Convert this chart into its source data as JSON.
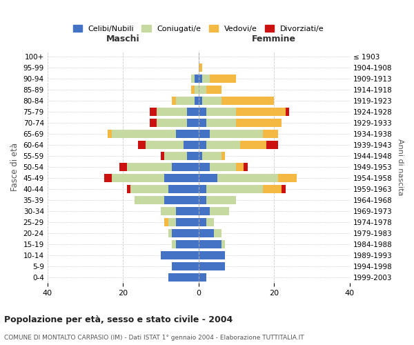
{
  "age_groups": [
    "0-4",
    "5-9",
    "10-14",
    "15-19",
    "20-24",
    "25-29",
    "30-34",
    "35-39",
    "40-44",
    "45-49",
    "50-54",
    "55-59",
    "60-64",
    "65-69",
    "70-74",
    "75-79",
    "80-84",
    "85-89",
    "90-94",
    "95-99",
    "100+"
  ],
  "birth_years": [
    "1999-2003",
    "1994-1998",
    "1989-1993",
    "1984-1988",
    "1979-1983",
    "1974-1978",
    "1969-1973",
    "1964-1968",
    "1959-1963",
    "1954-1958",
    "1949-1953",
    "1944-1948",
    "1939-1943",
    "1934-1938",
    "1929-1933",
    "1924-1928",
    "1919-1923",
    "1914-1918",
    "1909-1913",
    "1904-1908",
    "≤ 1903"
  ],
  "maschi": {
    "celibi": [
      8,
      7,
      10,
      6,
      7,
      6,
      6,
      9,
      8,
      9,
      7,
      3,
      4,
      6,
      3,
      3,
      1,
      0,
      1,
      0,
      0
    ],
    "coniugati": [
      0,
      0,
      0,
      1,
      1,
      2,
      4,
      8,
      10,
      14,
      12,
      6,
      10,
      17,
      8,
      8,
      5,
      1,
      1,
      0,
      0
    ],
    "vedovi": [
      0,
      0,
      0,
      0,
      0,
      1,
      0,
      0,
      0,
      0,
      0,
      0,
      0,
      1,
      0,
      0,
      1,
      1,
      0,
      0,
      0
    ],
    "divorziati": [
      0,
      0,
      0,
      0,
      0,
      0,
      0,
      0,
      1,
      2,
      2,
      1,
      2,
      0,
      2,
      2,
      0,
      0,
      0,
      0,
      0
    ]
  },
  "femmine": {
    "nubili": [
      2,
      7,
      7,
      6,
      4,
      2,
      3,
      2,
      2,
      5,
      3,
      1,
      2,
      3,
      2,
      2,
      1,
      0,
      1,
      0,
      0
    ],
    "coniugate": [
      0,
      0,
      0,
      1,
      2,
      2,
      5,
      8,
      15,
      16,
      7,
      5,
      9,
      14,
      8,
      8,
      5,
      2,
      2,
      0,
      0
    ],
    "vedove": [
      0,
      0,
      0,
      0,
      0,
      0,
      0,
      0,
      5,
      5,
      2,
      1,
      7,
      4,
      12,
      13,
      14,
      4,
      7,
      1,
      0
    ],
    "divorziate": [
      0,
      0,
      0,
      0,
      0,
      0,
      0,
      0,
      1,
      0,
      1,
      0,
      3,
      0,
      0,
      1,
      0,
      0,
      0,
      0,
      0
    ]
  },
  "colors": {
    "celibi_nubili": "#4472c4",
    "coniugati": "#c5d9a0",
    "vedovi": "#f4b942",
    "divorziati": "#cc1111"
  },
  "title": "Popolazione per età, sesso e stato civile - 2004",
  "subtitle": "COMUNE DI MONTALTO CARPASIO (IM) - Dati ISTAT 1° gennaio 2004 - Elaborazione TUTTITALIA.IT",
  "xlabel_left": "Maschi",
  "xlabel_right": "Femmine",
  "ylabel_left": "Fasce di età",
  "ylabel_right": "Anni di nascita",
  "legend_labels": [
    "Celibi/Nubili",
    "Coniugati/e",
    "Vedovi/e",
    "Divorziati/e"
  ],
  "xlim": 40,
  "background_color": "#ffffff",
  "grid_color": "#cccccc"
}
